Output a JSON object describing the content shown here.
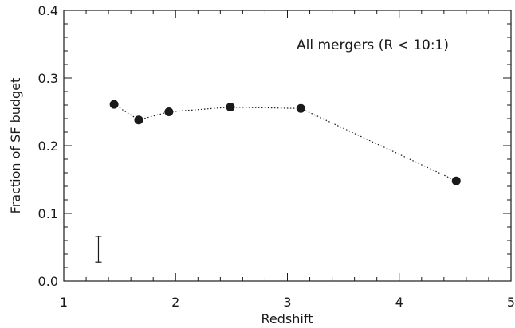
{
  "chart_data": {
    "type": "line",
    "title": "",
    "xlabel": "Redshift",
    "ylabel": "Fraction of SF budget",
    "xlim": [
      1,
      5
    ],
    "ylim": [
      0.0,
      0.4
    ],
    "xticks": [
      "1",
      "2",
      "3",
      "4",
      "5"
    ],
    "yticks": [
      "0.0",
      "0.1",
      "0.2",
      "0.3",
      "0.4"
    ],
    "grid": false,
    "series": [
      {
        "x": [
          1.45,
          1.67,
          1.94,
          2.49,
          3.12,
          4.51
        ],
        "y": [
          0.261,
          0.238,
          0.25,
          0.257,
          0.255,
          0.148
        ],
        "line_style": "dotted",
        "marker": "filled-circle",
        "color": "#1a1a1a"
      }
    ],
    "error_bar": {
      "x": 1.31,
      "y_low": 0.028,
      "y_high": 0.066
    },
    "annotation": "All mergers (R < 10:1)"
  }
}
